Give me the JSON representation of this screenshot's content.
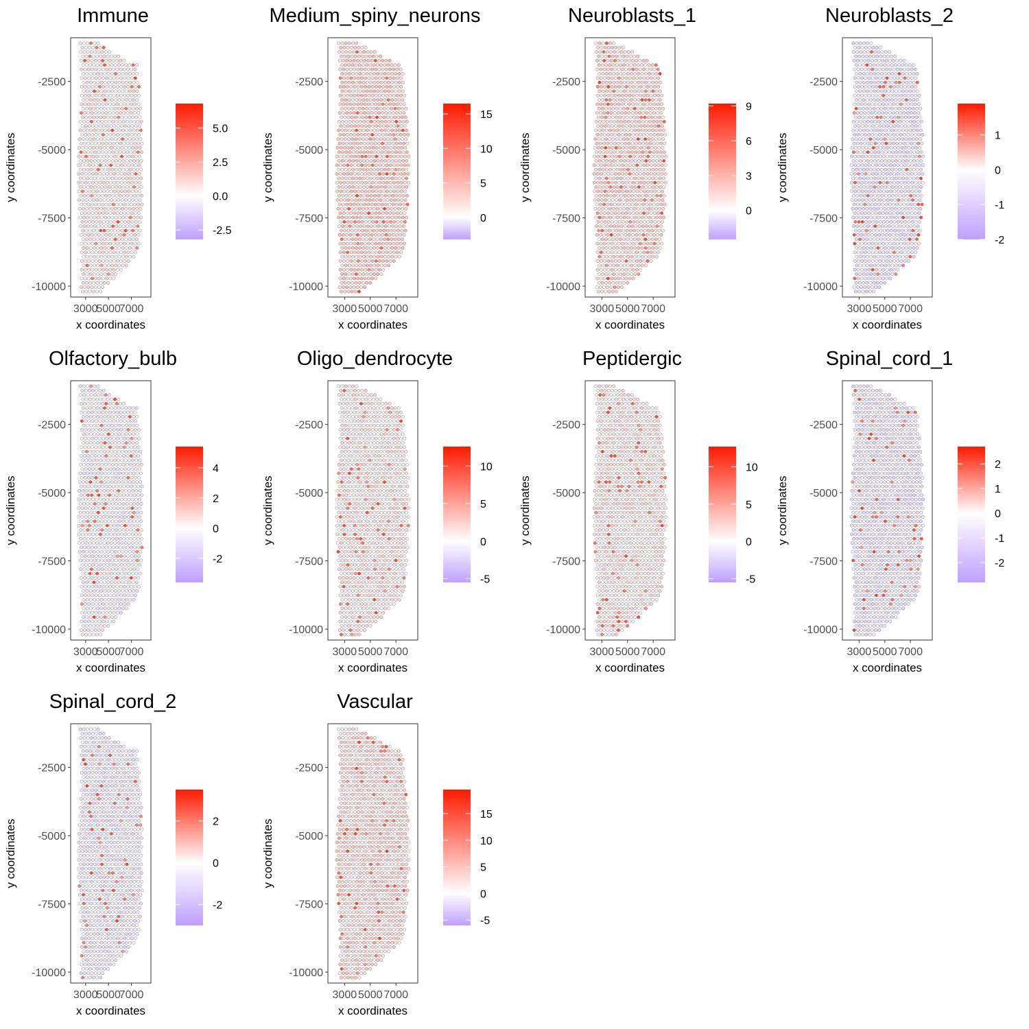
{
  "figure": {
    "point_stroke": "#555555",
    "point_fill": "#ffffff",
    "high_color": "#ff1a00",
    "mid_color": "#ffffff",
    "low_color": "#a880ff"
  },
  "chart_data": [
    {
      "type": "scatter",
      "title": "Immune",
      "xlabel": "x coordinates",
      "ylabel": "y coordinates",
      "xticks": [
        "3000",
        "5000",
        "7000"
      ],
      "yticks": [
        "-2500",
        "-5000",
        "-7500",
        "-10000"
      ],
      "xlim": [
        1700,
        8700
      ],
      "ylim": [
        -10400,
        -900
      ],
      "legend": {
        "labels": [
          "5.0",
          "2.5",
          "0.0",
          "-2.5"
        ],
        "values": [
          5.0,
          2.5,
          0.0,
          -2.5
        ],
        "min": -3.2,
        "max": 6.8
      }
    },
    {
      "type": "scatter",
      "title": "Medium_spiny_neurons",
      "xlabel": "x coordinates",
      "ylabel": "y coordinates",
      "xticks": [
        "3000",
        "5000",
        "7000"
      ],
      "yticks": [
        "-2500",
        "-5000",
        "-7500",
        "-10000"
      ],
      "xlim": [
        1700,
        8700
      ],
      "ylim": [
        -10400,
        -900
      ],
      "legend": {
        "labels": [
          "15",
          "10",
          "5",
          "0"
        ],
        "values": [
          15,
          10,
          5,
          0
        ],
        "min": -3.2,
        "max": 16.5
      }
    },
    {
      "type": "scatter",
      "title": "Neuroblasts_1",
      "xlabel": "x coordinates",
      "ylabel": "y coordinates",
      "xticks": [
        "3000",
        "5000",
        "7000"
      ],
      "yticks": [
        "-2500",
        "-5000",
        "-7500",
        "-10000"
      ],
      "xlim": [
        1700,
        8700
      ],
      "ylim": [
        -10400,
        -900
      ],
      "legend": {
        "labels": [
          "9",
          "6",
          "3",
          "0"
        ],
        "values": [
          9,
          6,
          3,
          0
        ],
        "min": -2.5,
        "max": 9.2
      }
    },
    {
      "type": "scatter",
      "title": "Neuroblasts_2",
      "xlabel": "x coordinates",
      "ylabel": "y coordinates",
      "xticks": [
        "3000",
        "5000",
        "7000"
      ],
      "yticks": [
        "-2500",
        "-5000",
        "-7500",
        "-10000"
      ],
      "xlim": [
        1700,
        8700
      ],
      "ylim": [
        -10400,
        -900
      ],
      "legend": {
        "labels": [
          "1",
          "0",
          "-1",
          "-2"
        ],
        "values": [
          1,
          0,
          -1,
          -2
        ],
        "min": -2.0,
        "max": 1.9
      }
    },
    {
      "type": "scatter",
      "title": "Olfactory_bulb",
      "xlabel": "x coordinates",
      "ylabel": "y coordinates",
      "xticks": [
        "3000",
        "5000",
        "7000"
      ],
      "yticks": [
        "-2500",
        "-5000",
        "-7500",
        "-10000"
      ],
      "xlim": [
        1700,
        8700
      ],
      "ylim": [
        -10400,
        -900
      ],
      "legend": {
        "labels": [
          "4",
          "2",
          "0",
          "-2"
        ],
        "values": [
          4,
          2,
          0,
          -2
        ],
        "min": -3.6,
        "max": 5.4
      }
    },
    {
      "type": "scatter",
      "title": "Oligo_dendrocyte",
      "xlabel": "x coordinates",
      "ylabel": "y coordinates",
      "xticks": [
        "3000",
        "5000",
        "7000"
      ],
      "yticks": [
        "-2500",
        "-5000",
        "-7500",
        "-10000"
      ],
      "xlim": [
        1700,
        8700
      ],
      "ylim": [
        -10400,
        -900
      ],
      "legend": {
        "labels": [
          "10",
          "5",
          "0",
          "-5"
        ],
        "values": [
          10,
          5,
          0,
          -5
        ],
        "min": -5.5,
        "max": 12.6
      }
    },
    {
      "type": "scatter",
      "title": "Peptidergic",
      "xlabel": "x coordinates",
      "ylabel": "y coordinates",
      "xticks": [
        "3000",
        "5000",
        "7000"
      ],
      "yticks": [
        "-2500",
        "-5000",
        "-7500",
        "-10000"
      ],
      "xlim": [
        1700,
        8700
      ],
      "ylim": [
        -10400,
        -900
      ],
      "legend": {
        "labels": [
          "10",
          "5",
          "0",
          "-5"
        ],
        "values": [
          10,
          5,
          0,
          -5
        ],
        "min": -5.5,
        "max": 12.7
      }
    },
    {
      "type": "scatter",
      "title": "Spinal_cord_1",
      "xlabel": "x coordinates",
      "ylabel": "y coordinates",
      "xticks": [
        "3000",
        "5000",
        "7000"
      ],
      "yticks": [
        "-2500",
        "-5000",
        "-7500",
        "-10000"
      ],
      "xlim": [
        1700,
        8700
      ],
      "ylim": [
        -10400,
        -900
      ],
      "legend": {
        "labels": [
          "2",
          "1",
          "0",
          "-1",
          "-2"
        ],
        "values": [
          2,
          1,
          0,
          -1,
          -2
        ],
        "min": -2.8,
        "max": 2.7
      }
    },
    {
      "type": "scatter",
      "title": "Spinal_cord_2",
      "xlabel": "x coordinates",
      "ylabel": "y coordinates",
      "xticks": [
        "3000",
        "5000",
        "7000"
      ],
      "yticks": [
        "-2500",
        "-5000",
        "-7500",
        "-10000"
      ],
      "xlim": [
        1700,
        8700
      ],
      "ylim": [
        -10400,
        -900
      ],
      "legend": {
        "labels": [
          "2",
          "0",
          "-2"
        ],
        "values": [
          2,
          0,
          -2
        ],
        "min": -3.0,
        "max": 3.5
      }
    },
    {
      "type": "scatter",
      "title": "Vascular",
      "xlabel": "x coordinates",
      "ylabel": "y coordinates",
      "xticks": [
        "3000",
        "5000",
        "7000"
      ],
      "yticks": [
        "-2500",
        "-5000",
        "-7500",
        "-10000"
      ],
      "xlim": [
        1700,
        8700
      ],
      "ylim": [
        -10400,
        -900
      ],
      "legend": {
        "labels": [
          "15",
          "10",
          "5",
          "0",
          "-5"
        ],
        "values": [
          15,
          10,
          5,
          0,
          -5
        ],
        "min": -6.0,
        "max": 19.5
      }
    }
  ]
}
